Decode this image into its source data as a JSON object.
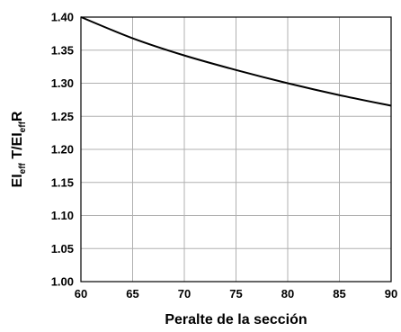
{
  "chart_data": {
    "type": "line",
    "title": "",
    "xlabel": "Peralte de la sección",
    "ylabel": {
      "parts": [
        {
          "text": "EI",
          "sub": false
        },
        {
          "text": "eff",
          "sub": true
        },
        {
          "text": " T/EI",
          "sub": false
        },
        {
          "text": "eff",
          "sub": true
        },
        {
          "text": "R",
          "sub": false
        }
      ]
    },
    "xlim": [
      60,
      90
    ],
    "ylim": [
      1.0,
      1.4
    ],
    "xticks": [
      "60",
      "65",
      "70",
      "75",
      "80",
      "85",
      "90"
    ],
    "yticks": [
      "1.00",
      "1.05",
      "1.10",
      "1.15",
      "1.20",
      "1.25",
      "1.30",
      "1.35",
      "1.40"
    ],
    "grid": true,
    "series": [
      {
        "x": [
          60,
          65,
          70,
          75,
          80,
          85,
          90
        ],
        "y": [
          1.4,
          1.368,
          1.342,
          1.32,
          1.3,
          1.282,
          1.266
        ]
      }
    ],
    "colors": {
      "line": "#000000",
      "grid": "#b0b0b0",
      "axis": "#000000"
    }
  }
}
